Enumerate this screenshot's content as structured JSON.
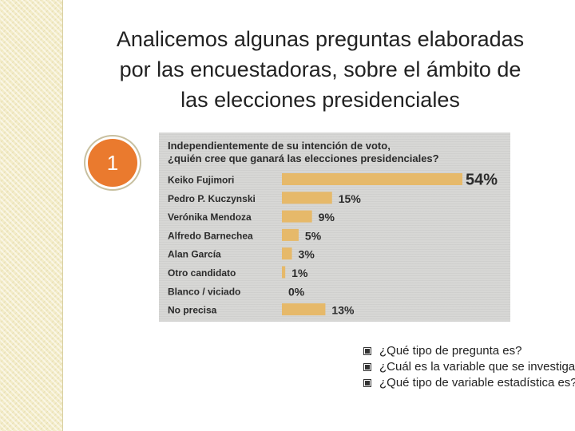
{
  "slide": {
    "title_lines": [
      "Analicemos algunas preguntas elaboradas",
      "por las encuestadoras, sobre el ámbito de",
      "las elecciones presidenciales"
    ],
    "badge_number": "1",
    "questions": [
      "¿Qué tipo de pregunta es?",
      "¿Cuál es la variable que se investiga?",
      "¿Qué tipo de variable estadística es?"
    ],
    "colors": {
      "bar": "#e6b96a",
      "badge": "#ea7a2e",
      "side_band": "#f3ecc8"
    }
  },
  "chart_data": {
    "type": "bar",
    "orientation": "horizontal",
    "title_lines": [
      "Independientemente de su intención de voto,",
      "¿quién cree que ganará las elecciones presidenciales?"
    ],
    "categories": [
      "Keiko Fujimori",
      "Pedro P. Kuczynski",
      "Verónika Mendoza",
      "Alfredo Barnechea",
      "Alan García",
      "Otro candidato",
      "Blanco / viciado",
      "No precisa"
    ],
    "values": [
      54,
      15,
      9,
      5,
      3,
      1,
      0,
      13
    ],
    "value_labels": [
      "54%",
      "15%",
      "9%",
      "5%",
      "3%",
      "1%",
      "0%",
      "13%"
    ],
    "xlim": [
      0,
      54
    ]
  }
}
